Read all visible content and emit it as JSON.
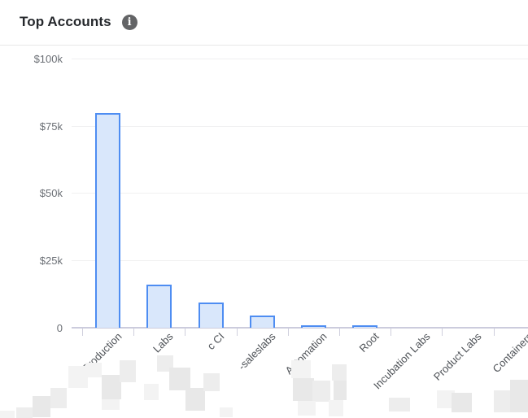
{
  "header": {
    "title": "Top Accounts",
    "info_icon": "i"
  },
  "colors": {
    "bar_fill": "#d9e7fb",
    "bar_border": "#4e8df2",
    "grid": "#f0f0f1",
    "axis_line": "#ccccdd",
    "y_label_text": "#6b6f75",
    "x_label_text": "#4e5257",
    "title_text": "#25282c",
    "info_badge_bg": "#636466"
  },
  "chart_data": {
    "type": "bar",
    "title": "Top Accounts",
    "categories": [
      "Production",
      "Labs",
      "c CI",
      "-saleslabs",
      "Automation",
      "Root",
      "Incubation Labs",
      "Product Labs",
      "Containers"
    ],
    "values": [
      80000,
      16000,
      9500,
      4500,
      1000,
      1000,
      0,
      0,
      0
    ],
    "redacted_prefixes": [
      true,
      true,
      true,
      true,
      true,
      true,
      true,
      true,
      true
    ],
    "yticks": [
      {
        "label": "$100k",
        "value": 100000
      },
      {
        "label": "$75k",
        "value": 75000
      },
      {
        "label": "$50k",
        "value": 50000
      },
      {
        "label": "$25k",
        "value": 25000
      },
      {
        "label": "0",
        "value": 0
      }
    ],
    "ylim": [
      0,
      100000
    ],
    "xlabel": "",
    "ylabel": "",
    "grid": true,
    "legend_position": "none",
    "x_tick_label_rotation": -45
  }
}
